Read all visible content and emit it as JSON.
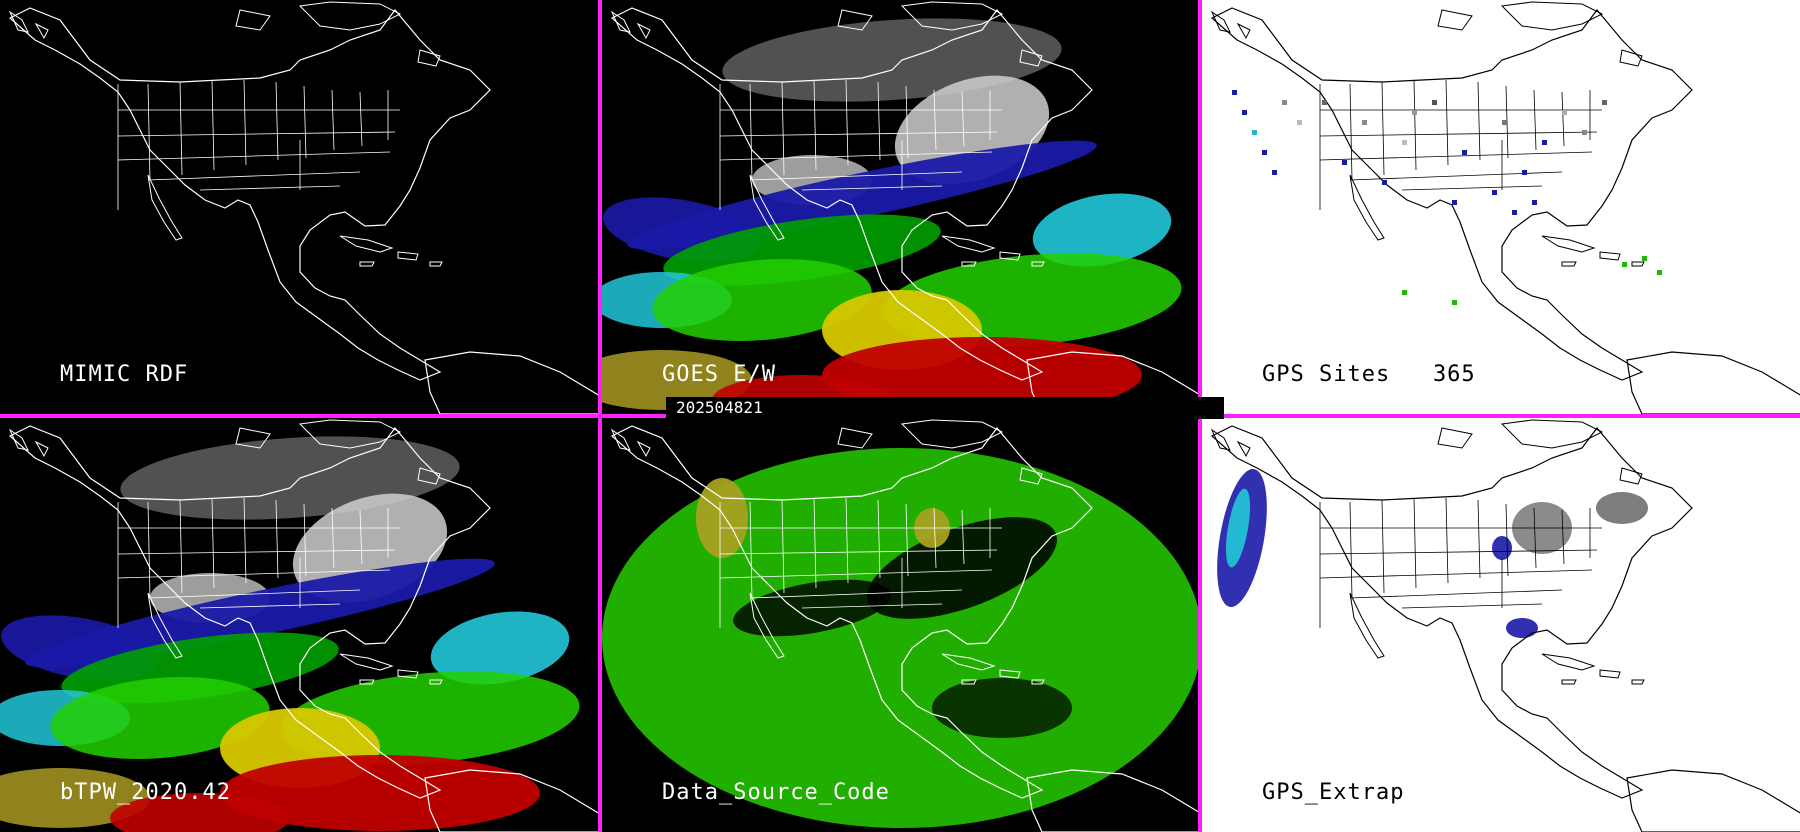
{
  "panels": [
    {
      "label": "MIMIC RDF",
      "theme": "dark",
      "field": "none"
    },
    {
      "label": "GOES E/W",
      "theme": "dark",
      "field": "tpw"
    },
    {
      "label": "GPS Sites   365",
      "theme": "light",
      "field": "sites"
    },
    {
      "label": "bTPW_2020.42",
      "theme": "dark",
      "field": "tpw"
    },
    {
      "label": "Data_Source_Code",
      "theme": "dark",
      "field": "source"
    },
    {
      "label": "GPS_Extrap",
      "theme": "light",
      "field": "extrap"
    }
  ],
  "timestamp": "202504821",
  "colors": {
    "divider": "#ff22ff",
    "tpw_dry": "#1a1aa8",
    "tpw_moist": "#22c8d8",
    "tpw_wet": "#d8c800",
    "tpw_very_wet": "#c00000",
    "source_main": "#22b800",
    "source_alt": "#a8a020"
  }
}
